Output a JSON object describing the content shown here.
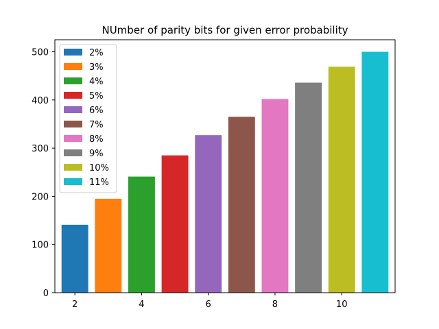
{
  "chart_data": {
    "type": "bar",
    "title": "NUmber of parity bits for given error probability",
    "xlabel": "",
    "ylabel": "",
    "x": [
      2,
      3,
      4,
      5,
      6,
      7,
      8,
      9,
      10,
      11
    ],
    "x_ticks": [
      2,
      4,
      6,
      8,
      10
    ],
    "xlim": [
      1.4,
      11.6
    ],
    "ylim": [
      0,
      525
    ],
    "y_ticks": [
      0,
      100,
      200,
      300,
      400,
      500
    ],
    "grid": false,
    "legend_position": "top-left",
    "series": [
      {
        "name": "2%",
        "x": 2,
        "value": 141,
        "color": "#1f77b4"
      },
      {
        "name": "3%",
        "x": 3,
        "value": 195,
        "color": "#ff7f0e"
      },
      {
        "name": "4%",
        "x": 4,
        "value": 241,
        "color": "#2ca02c"
      },
      {
        "name": "5%",
        "x": 5,
        "value": 285,
        "color": "#d62728"
      },
      {
        "name": "6%",
        "x": 6,
        "value": 327,
        "color": "#9467bd"
      },
      {
        "name": "7%",
        "x": 7,
        "value": 365,
        "color": "#8c564b"
      },
      {
        "name": "8%",
        "x": 8,
        "value": 402,
        "color": "#e377c2"
      },
      {
        "name": "9%",
        "x": 9,
        "value": 436,
        "color": "#7f7f7f"
      },
      {
        "name": "10%",
        "x": 10,
        "value": 469,
        "color": "#bcbd22"
      },
      {
        "name": "11%",
        "x": 11,
        "value": 500,
        "color": "#17becf"
      }
    ]
  }
}
